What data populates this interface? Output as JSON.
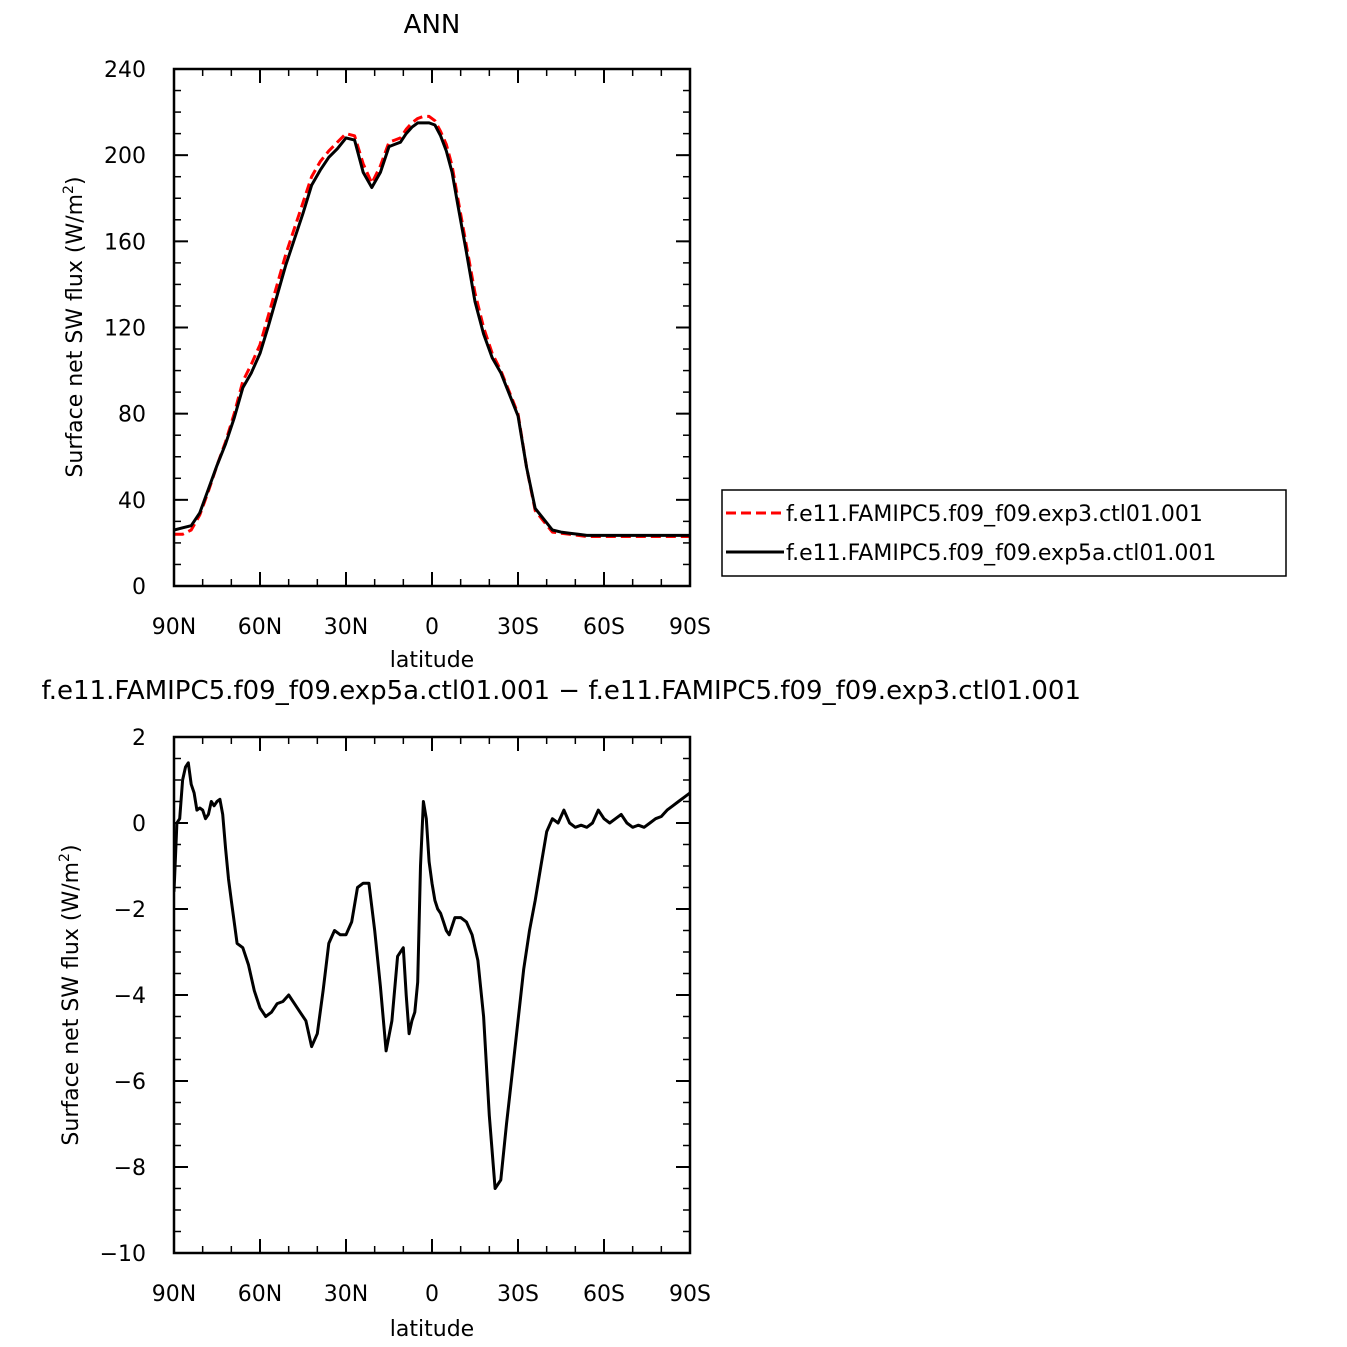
{
  "chart_data": [
    {
      "type": "line",
      "title": "ANN",
      "xlabel": "latitude",
      "ylabel": "Surface net SW flux (W/m",
      "ylabel_sup": "2",
      "ylabel_close": ")",
      "xlim": [
        90,
        -90
      ],
      "ylim": [
        0,
        240
      ],
      "yticks": [
        0,
        40,
        80,
        120,
        160,
        200,
        240
      ],
      "xticks": [
        90,
        60,
        30,
        0,
        -30,
        -60,
        -90
      ],
      "xtick_labels": [
        "90N",
        "60N",
        "30N",
        "0",
        "30S",
        "60S",
        "90S"
      ],
      "legend": "right",
      "series": [
        {
          "name": "f.e11.FAMIPC5.f09_f09.exp3.ctl01.001",
          "color": "#ff0000",
          "style": "dashed",
          "x": [
            90,
            87,
            84,
            81,
            78,
            75,
            72,
            69,
            66,
            63,
            60,
            57,
            54,
            51,
            48,
            45,
            42,
            39,
            36,
            33,
            30,
            27,
            24,
            21,
            18,
            15,
            13,
            11,
            9,
            7,
            5,
            3,
            1,
            -1,
            -3,
            -5,
            -7,
            -9,
            -12,
            -15,
            -18,
            -21,
            -24,
            -27,
            -30,
            -33,
            -36,
            -39,
            -42,
            -45,
            -48,
            -51,
            -54,
            -57,
            -60,
            -62,
            -64,
            -66,
            -68,
            -70,
            -72,
            -75,
            -78,
            -81,
            -84,
            -87,
            -90
          ],
          "y": [
            24,
            24,
            26,
            33,
            44,
            56,
            67,
            80,
            95,
            103,
            112,
            126,
            140,
            154,
            166,
            178,
            190,
            197,
            202,
            206,
            210,
            209,
            196,
            187,
            195,
            206,
            207,
            208,
            212,
            215,
            217,
            218,
            218,
            216,
            211,
            205,
            195,
            180,
            158,
            136,
            120,
            108,
            100,
            90,
            80,
            55,
            35,
            30,
            25,
            24.5,
            24,
            23.5,
            23,
            23,
            23,
            23,
            23,
            23,
            23,
            23,
            23,
            23,
            23,
            23,
            23,
            23,
            23
          ]
        },
        {
          "name": "f.e11.FAMIPC5.f09_f09.exp5a.ctl01.001",
          "color": "#000000",
          "style": "solid",
          "x": [
            90,
            87,
            84,
            81,
            78,
            75,
            72,
            69,
            66,
            63,
            60,
            57,
            54,
            51,
            48,
            45,
            42,
            39,
            36,
            33,
            30,
            27,
            24,
            21,
            18,
            15,
            13,
            11,
            9,
            7,
            5,
            3,
            1,
            -1,
            -3,
            -5,
            -7,
            -9,
            -12,
            -15,
            -18,
            -21,
            -24,
            -27,
            -30,
            -33,
            -36,
            -39,
            -42,
            -45,
            -48,
            -51,
            -54,
            -57,
            -60,
            -62,
            -64,
            -66,
            -68,
            -70,
            -72,
            -75,
            -78,
            -81,
            -84,
            -87,
            -90
          ],
          "y": [
            26,
            27,
            28,
            34,
            45,
            56,
            66,
            78,
            92,
            99,
            108,
            121,
            135,
            149,
            161,
            173,
            186,
            193,
            199,
            203,
            208,
            207,
            192,
            185,
            192,
            204,
            205,
            206,
            210,
            213,
            215,
            215,
            215,
            214,
            209,
            202,
            192,
            177,
            155,
            132,
            117,
            106,
            99,
            89,
            79,
            55,
            36,
            31,
            26,
            25,
            24.5,
            24,
            23.5,
            23.5,
            23.5,
            23.5,
            23.5,
            23.5,
            23.5,
            23.5,
            23.5,
            23.5,
            23.5,
            23.5,
            23.5,
            23.5,
            23.5
          ]
        }
      ]
    },
    {
      "type": "line",
      "title": "f.e11.FAMIPC5.f09_f09.exp5a.ctl01.001 − f.e11.FAMIPC5.f09_f09.exp3.ctl01.001",
      "xlabel": "latitude",
      "ylabel": "Surface net SW flux (W/m",
      "ylabel_sup": "2",
      "ylabel_close": ")",
      "xlim": [
        90,
        -90
      ],
      "ylim": [
        -10,
        2
      ],
      "yticks": [
        -10,
        -8,
        -6,
        -4,
        -2,
        0,
        2
      ],
      "ytick_labels": [
        "−10",
        "−8",
        "−6",
        "−4",
        "−2",
        "0",
        "2"
      ],
      "xticks": [
        90,
        60,
        30,
        0,
        -30,
        -60,
        -90
      ],
      "xtick_labels": [
        "90N",
        "60N",
        "30N",
        "0",
        "30S",
        "60S",
        "90S"
      ],
      "series": [
        {
          "color": "#000000",
          "style": "solid",
          "x": [
            90,
            89,
            88,
            87,
            86,
            85,
            84,
            83,
            82,
            81,
            80,
            79,
            78,
            77,
            76,
            75,
            74,
            73,
            72,
            71,
            70,
            68,
            66,
            64,
            62,
            60,
            58,
            56,
            54,
            52,
            50,
            48,
            46,
            44,
            42,
            40,
            38,
            36,
            34,
            32,
            30,
            28,
            26,
            24,
            22,
            20,
            18,
            16,
            14,
            12,
            10,
            9,
            8,
            7,
            6,
            5,
            4,
            3,
            2,
            1,
            0,
            -1,
            -2,
            -3,
            -4,
            -5,
            -6,
            -8,
            -10,
            -12,
            -14,
            -16,
            -18,
            -20,
            -22,
            -24,
            -26,
            -28,
            -30,
            -32,
            -34,
            -36,
            -38,
            -40,
            -42,
            -44,
            -46,
            -48,
            -50,
            -52,
            -54,
            -56,
            -58,
            -60,
            -62,
            -64,
            -66,
            -68,
            -70,
            -72,
            -74,
            -76,
            -78,
            -80,
            -82,
            -84,
            -86,
            -88,
            -90
          ],
          "y": [
            -1.6,
            0,
            0.1,
            1,
            1.3,
            1.4,
            0.9,
            0.7,
            0.3,
            0.35,
            0.3,
            0.1,
            0.2,
            0.5,
            0.4,
            0.5,
            0.55,
            0.2,
            -0.6,
            -1.3,
            -1.8,
            -2.8,
            -2.9,
            -3.3,
            -3.9,
            -4.3,
            -4.5,
            -4.4,
            -4.2,
            -4.15,
            -4.0,
            -4.2,
            -4.4,
            -4.6,
            -5.2,
            -4.9,
            -3.9,
            -2.8,
            -2.5,
            -2.6,
            -2.6,
            -2.3,
            -1.5,
            -1.4,
            -1.4,
            -2.5,
            -3.8,
            -5.3,
            -4.6,
            -3.1,
            -2.9,
            -4.0,
            -4.9,
            -4.6,
            -4.4,
            -3.7,
            -1.0,
            0.5,
            0.1,
            -0.9,
            -1.4,
            -1.8,
            -2.0,
            -2.1,
            -2.3,
            -2.5,
            -2.6,
            -2.2,
            -2.2,
            -2.3,
            -2.6,
            -3.2,
            -4.5,
            -6.8,
            -8.5,
            -8.3,
            -7.0,
            -5.8,
            -4.6,
            -3.4,
            -2.5,
            -1.8,
            -1.0,
            -0.2,
            0.1,
            0.0,
            0.3,
            0.0,
            -0.1,
            -0.05,
            -0.1,
            0.0,
            0.3,
            0.1,
            0.0,
            0.1,
            0.2,
            0.0,
            -0.1,
            -0.05,
            -0.1,
            0.0,
            0.1,
            0.15,
            0.3,
            0.4,
            0.5,
            0.6,
            0.7
          ]
        }
      ]
    }
  ]
}
